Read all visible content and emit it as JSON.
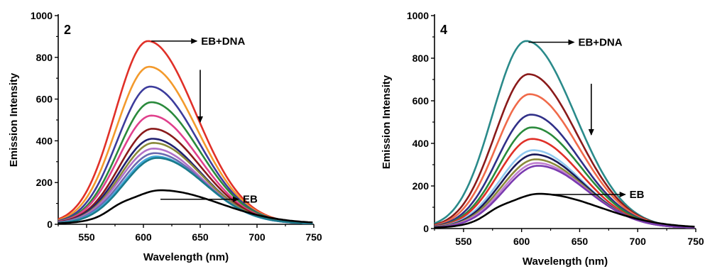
{
  "chart_data": [
    {
      "type": "line",
      "panel_label": "2",
      "xlabel": "Wavelength (nm)",
      "ylabel": "Emission Intensity",
      "xlim": [
        525,
        750
      ],
      "ylim": [
        0,
        1000
      ],
      "xticks": [
        550,
        600,
        650,
        700,
        750
      ],
      "yticks": [
        0,
        200,
        400,
        600,
        800,
        1000
      ],
      "grid": false,
      "annotations": [
        {
          "text": "EB+DNA",
          "x": 607,
          "y": 878,
          "arrow": "right"
        },
        {
          "text": "EB",
          "x": 615,
          "y": 120,
          "arrow": "right"
        },
        {
          "arrow": "down",
          "x": 650,
          "from_y": 740,
          "to_y": 490
        }
      ],
      "series": [
        {
          "peak_x": 604,
          "peak_y": 875,
          "color": "#e03028"
        },
        {
          "peak_x": 605,
          "peak_y": 752,
          "color": "#f39a2c"
        },
        {
          "peak_x": 606,
          "peak_y": 657,
          "color": "#3c3c9c"
        },
        {
          "peak_x": 607,
          "peak_y": 582,
          "color": "#2a8a3c"
        },
        {
          "peak_x": 607,
          "peak_y": 518,
          "color": "#e0408c"
        },
        {
          "peak_x": 608,
          "peak_y": 455,
          "color": "#8a1a1a"
        },
        {
          "peak_x": 608,
          "peak_y": 407,
          "color": "#202070"
        },
        {
          "peak_x": 609,
          "peak_y": 387,
          "color": "#8a8a3a"
        },
        {
          "peak_x": 609,
          "peak_y": 360,
          "color": "#b070c8"
        },
        {
          "peak_x": 610,
          "peak_y": 338,
          "color": "#6a6ab0"
        },
        {
          "peak_x": 611,
          "peak_y": 322,
          "color": "#40a8d8"
        },
        {
          "peak_x": 612,
          "peak_y": 315,
          "color": "#1a7a8a"
        },
        {
          "peak_x": 615,
          "peak_y": 160,
          "color": "#000000"
        }
      ]
    },
    {
      "type": "line",
      "panel_label": "4",
      "xlabel": "Wavelength (nm)",
      "ylabel": "Emission Intensity",
      "xlim": [
        525,
        750
      ],
      "ylim": [
        0,
        1000
      ],
      "xticks": [
        550,
        600,
        650,
        700,
        750
      ],
      "yticks": [
        0,
        200,
        400,
        600,
        800,
        1000
      ],
      "grid": false,
      "annotations": [
        {
          "text": "EB+DNA",
          "x": 606,
          "y": 875,
          "arrow": "right"
        },
        {
          "text": "EB",
          "x": 622,
          "y": 160,
          "arrow": "right"
        },
        {
          "arrow": "down",
          "x": 660,
          "from_y": 680,
          "to_y": 440
        }
      ],
      "series": [
        {
          "peak_x": 604,
          "peak_y": 878,
          "color": "#2a8a8a"
        },
        {
          "peak_x": 606,
          "peak_y": 722,
          "color": "#8a1a1a"
        },
        {
          "peak_x": 607,
          "peak_y": 628,
          "color": "#f06a4a"
        },
        {
          "peak_x": 608,
          "peak_y": 532,
          "color": "#303088"
        },
        {
          "peak_x": 609,
          "peak_y": 472,
          "color": "#2a8a3c"
        },
        {
          "peak_x": 609,
          "peak_y": 418,
          "color": "#e03028"
        },
        {
          "peak_x": 610,
          "peak_y": 365,
          "color": "#90c8f0"
        },
        {
          "peak_x": 611,
          "peak_y": 345,
          "color": "#1a1a5a"
        },
        {
          "peak_x": 612,
          "peak_y": 322,
          "color": "#8a8a3a"
        },
        {
          "peak_x": 613,
          "peak_y": 305,
          "color": "#c080d0"
        },
        {
          "peak_x": 614,
          "peak_y": 292,
          "color": "#7a3ab0"
        },
        {
          "peak_x": 615,
          "peak_y": 160,
          "color": "#000000"
        }
      ]
    }
  ]
}
